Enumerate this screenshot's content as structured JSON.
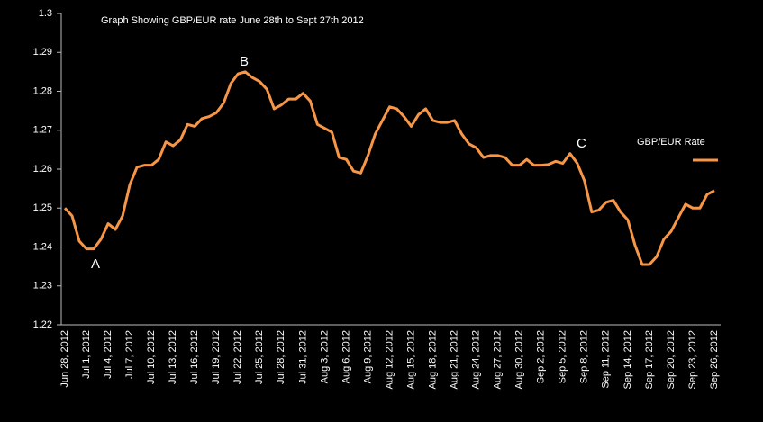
{
  "chart_data": {
    "type": "line",
    "title": "Graph Showing GBP/EUR rate June  28th to Sept 27th  2012",
    "categories": [
      "Jun 28, 2012",
      null,
      null,
      "Jul 1, 2012",
      null,
      null,
      "Jul 4, 2012",
      null,
      null,
      "Jul 7, 2012",
      null,
      null,
      "Jul 10, 2012",
      null,
      null,
      "Jul 13, 2012",
      null,
      null,
      "Jul 16, 2012",
      null,
      null,
      "Jul 19, 2012",
      null,
      null,
      "Jul 22, 2012",
      null,
      null,
      "Jul 25, 2012",
      null,
      null,
      "Jul 28, 2012",
      null,
      null,
      "Jul 31, 2012",
      null,
      null,
      "Aug 3, 2012",
      null,
      null,
      "Aug 6, 2012",
      null,
      null,
      "Aug 9, 2012",
      null,
      null,
      "Aug 12, 2012",
      null,
      null,
      "Aug 15, 2012",
      null,
      null,
      "Aug 18, 2012",
      null,
      null,
      "Aug 21, 2012",
      null,
      null,
      "Aug 24, 2012",
      null,
      null,
      "Aug 27, 2012",
      null,
      null,
      "Aug 30, 2012",
      null,
      null,
      "Sep 2, 2012",
      null,
      null,
      "Sep 5, 2012",
      null,
      null,
      "Sep 8, 2012",
      null,
      null,
      "Sep 11, 2012",
      null,
      null,
      "Sep 14, 2012",
      null,
      null,
      "Sep 17, 2012",
      null,
      null,
      "Sep 20, 2012",
      null,
      null,
      "Sep 23, 2012",
      null,
      null,
      "Sep 26, 2012"
    ],
    "series": [
      {
        "name": "GBP/EUR Rate",
        "color": "#f79646",
        "values": [
          1.25,
          1.248,
          1.2415,
          1.2395,
          1.2395,
          1.242,
          1.246,
          1.2445,
          1.248,
          1.256,
          1.2605,
          1.261,
          1.261,
          1.2625,
          1.267,
          1.266,
          1.2675,
          1.2715,
          1.271,
          1.273,
          1.2735,
          1.2745,
          1.277,
          1.282,
          1.2845,
          1.285,
          1.2835,
          1.2825,
          1.2805,
          1.2755,
          1.2765,
          1.278,
          1.278,
          1.2795,
          1.2775,
          1.2715,
          1.2705,
          1.2695,
          1.263,
          1.2625,
          1.2595,
          1.259,
          1.2635,
          1.269,
          1.2725,
          1.276,
          1.2755,
          1.2735,
          1.271,
          1.274,
          1.2755,
          1.2725,
          1.272,
          1.272,
          1.2725,
          1.269,
          1.2665,
          1.2655,
          1.263,
          1.2635,
          1.2635,
          1.263,
          1.261,
          1.261,
          1.2625,
          1.261,
          1.261,
          1.2612,
          1.262,
          1.2615,
          1.264,
          1.2615,
          1.257,
          1.249,
          1.2495,
          1.2515,
          1.252,
          1.249,
          1.247,
          1.2405,
          1.2355,
          1.2355,
          1.2375,
          1.242,
          1.244,
          1.2475,
          1.251,
          1.25,
          1.25,
          1.2535,
          1.2545
        ]
      }
    ],
    "ylim": [
      1.22,
      1.3
    ],
    "yticks": [
      1.22,
      1.23,
      1.24,
      1.25,
      1.26,
      1.27,
      1.28,
      1.29,
      1.3
    ],
    "annotations": [
      "A",
      "B",
      "C"
    ],
    "grid": false,
    "legend": "right"
  }
}
